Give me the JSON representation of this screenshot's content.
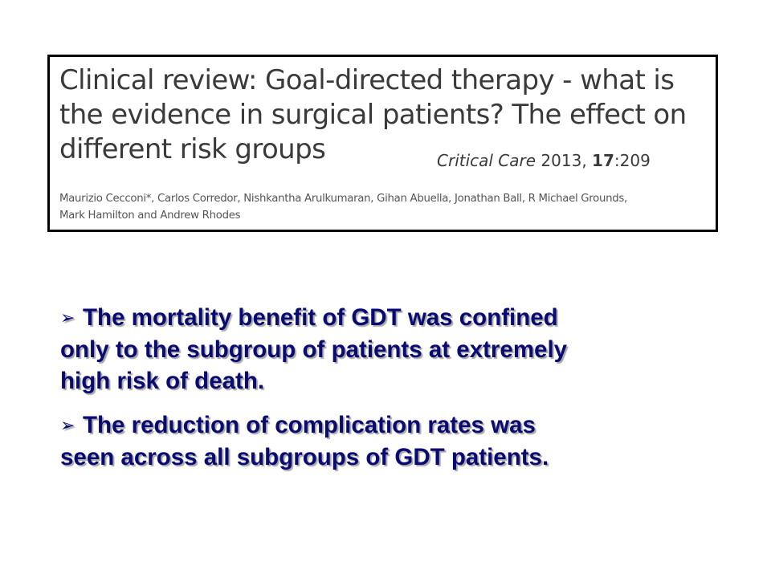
{
  "reference": {
    "title_lines": [
      "Clinical review: Goal-directed therapy - what is",
      "the evidence in surgical patients? The effect on",
      "different risk groups"
    ],
    "journal": "Critical Care",
    "year": "2013,",
    "volume": "17",
    "pages": ":209",
    "author_lines": [
      "Maurizio Cecconi*, Carlos Corredor, Nishkantha Arulkumaran, Gihan Abuella, Jonathan Ball, R Michael Grounds,",
      "Mark Hamilton and Andrew Rhodes"
    ]
  },
  "bullets": [
    {
      "marker": "➢",
      "lines": [
        "The mortality benefit of GDT was confined",
        "only to the subgroup of patients at extremely",
        "high risk of death."
      ]
    },
    {
      "marker": "➢",
      "lines": [
        "The reduction of complication rates was",
        "seen across all subgroups of GDT patients."
      ]
    }
  ],
  "colors": {
    "bullet_text": "#0a0a73",
    "reference_text": "#3a3a3a",
    "box_border": "#000000"
  }
}
